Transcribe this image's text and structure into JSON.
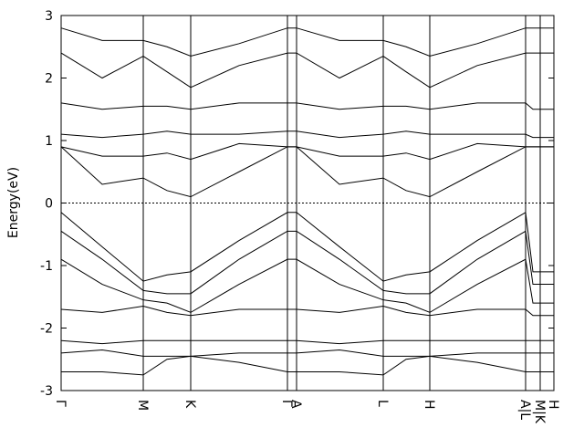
{
  "chart_data": {
    "type": "line",
    "ylabel": "Energy(eV)",
    "color": "#000000",
    "fermi_level": 0,
    "xlim": [
      0,
      540
    ],
    "xticks": [
      {
        "value": 0,
        "label": "Γ"
      },
      {
        "value": 90,
        "label": "M"
      },
      {
        "value": 142,
        "label": "K"
      },
      {
        "value": 248,
        "label": "Γ"
      },
      {
        "value": 258,
        "label": "A"
      },
      {
        "value": 353,
        "label": "L"
      },
      {
        "value": 404,
        "label": "H"
      },
      {
        "value": 509,
        "label": "A|L"
      },
      {
        "value": 525,
        "label": "M|K"
      },
      {
        "value": 540,
        "label": "H"
      }
    ],
    "ylim": [
      -3,
      3
    ],
    "yticks": [
      3,
      2,
      1,
      0,
      -1,
      -2,
      -3
    ],
    "x": [
      0,
      45,
      90,
      116,
      142,
      195,
      248,
      258,
      305,
      353,
      378,
      404,
      456,
      509,
      517,
      525,
      532,
      540
    ],
    "series": [
      {
        "values": [
          0.9,
          0.3,
          0.4,
          0.2,
          0.1,
          0.5,
          0.9,
          0.9,
          0.3,
          0.4,
          0.2,
          0.1,
          0.5,
          0.9,
          0.9,
          0.9,
          0.9,
          0.9
        ]
      },
      {
        "values": [
          0.9,
          0.75,
          0.75,
          0.8,
          0.7,
          0.95,
          0.9,
          0.9,
          0.75,
          0.75,
          0.8,
          0.7,
          0.95,
          0.9,
          0.9,
          0.9,
          0.9,
          0.9
        ]
      },
      {
        "values": [
          1.1,
          1.05,
          1.1,
          1.15,
          1.1,
          1.1,
          1.15,
          1.15,
          1.05,
          1.1,
          1.15,
          1.1,
          1.1,
          1.1,
          1.05,
          1.05,
          1.05,
          1.05
        ]
      },
      {
        "values": [
          1.6,
          1.5,
          1.55,
          1.55,
          1.5,
          1.6,
          1.6,
          1.6,
          1.5,
          1.55,
          1.55,
          1.5,
          1.6,
          1.6,
          1.5,
          1.5,
          1.5,
          1.5
        ]
      },
      {
        "values": [
          2.4,
          2.0,
          2.35,
          2.1,
          1.85,
          2.2,
          2.4,
          2.4,
          2.0,
          2.35,
          2.1,
          1.85,
          2.2,
          2.4,
          2.4,
          2.4,
          2.4,
          2.4
        ]
      },
      {
        "values": [
          2.8,
          2.6,
          2.6,
          2.5,
          2.35,
          2.55,
          2.8,
          2.8,
          2.6,
          2.6,
          2.5,
          2.35,
          2.55,
          2.8,
          2.8,
          2.8,
          2.8,
          2.8
        ]
      },
      {
        "values": [
          -0.15,
          -0.7,
          -1.25,
          -1.15,
          -1.1,
          -0.6,
          -0.15,
          -0.15,
          -0.7,
          -1.25,
          -1.15,
          -1.1,
          -0.6,
          -0.15,
          -1.1,
          -1.1,
          -1.1,
          -1.1
        ]
      },
      {
        "values": [
          -0.45,
          -0.9,
          -1.4,
          -1.45,
          -1.45,
          -0.9,
          -0.45,
          -0.45,
          -0.9,
          -1.4,
          -1.45,
          -1.45,
          -0.9,
          -0.45,
          -1.3,
          -1.3,
          -1.3,
          -1.3
        ]
      },
      {
        "values": [
          -0.9,
          -1.3,
          -1.55,
          -1.6,
          -1.75,
          -1.3,
          -0.9,
          -0.9,
          -1.3,
          -1.55,
          -1.6,
          -1.75,
          -1.3,
          -0.9,
          -1.6,
          -1.6,
          -1.6,
          -1.6
        ]
      },
      {
        "values": [
          -1.7,
          -1.75,
          -1.65,
          -1.75,
          -1.8,
          -1.7,
          -1.7,
          -1.7,
          -1.75,
          -1.65,
          -1.75,
          -1.8,
          -1.7,
          -1.7,
          -1.8,
          -1.8,
          -1.8,
          -1.8
        ]
      },
      {
        "values": [
          -2.2,
          -2.25,
          -2.2,
          -2.2,
          -2.2,
          -2.2,
          -2.2,
          -2.2,
          -2.25,
          -2.2,
          -2.2,
          -2.2,
          -2.2,
          -2.2,
          -2.2,
          -2.2,
          -2.2,
          -2.2
        ]
      },
      {
        "values": [
          -2.4,
          -2.35,
          -2.45,
          -2.45,
          -2.45,
          -2.4,
          -2.4,
          -2.4,
          -2.35,
          -2.45,
          -2.45,
          -2.45,
          -2.4,
          -2.4,
          -2.4,
          -2.4,
          -2.4,
          -2.4
        ]
      },
      {
        "values": [
          -2.7,
          -2.7,
          -2.75,
          -2.5,
          -2.45,
          -2.55,
          -2.7,
          -2.7,
          -2.7,
          -2.75,
          -2.5,
          -2.45,
          -2.55,
          -2.7,
          -2.7,
          -2.7,
          -2.7,
          -2.7
        ]
      }
    ]
  }
}
